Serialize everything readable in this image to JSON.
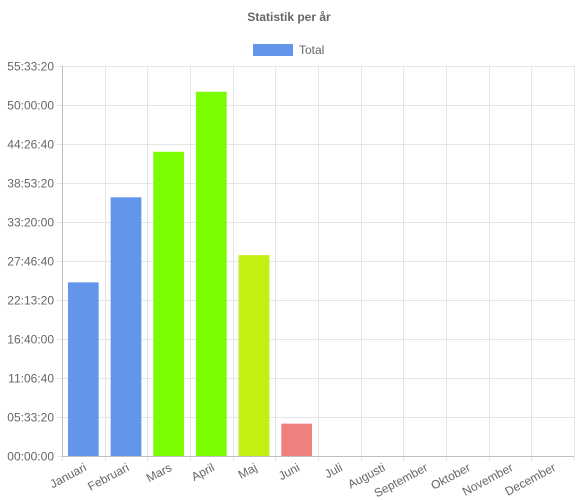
{
  "chart_data": {
    "type": "bar",
    "title": "Statistik per år",
    "legend": {
      "position": "top-center",
      "entries": [
        {
          "label": "Total",
          "color": "#6495ED"
        }
      ]
    },
    "categories": [
      "Januari",
      "Februari",
      "Mars",
      "April",
      "Maj",
      "Juni",
      "Juli",
      "Augusti",
      "September",
      "Oktober",
      "November",
      "December"
    ],
    "series": [
      {
        "name": "Total",
        "values": [
          89040,
          132680,
          156020,
          186800,
          103000,
          16600,
          0,
          0,
          0,
          0,
          0,
          0
        ],
        "colors": [
          "#6495ED",
          "#6495ED",
          "#7CFC00",
          "#7CFC00",
          "#C2F010",
          "#F08080",
          "#6495ED",
          "#6495ED",
          "#6495ED",
          "#6495ED",
          "#6495ED",
          "#6495ED"
        ]
      }
    ],
    "y_unit": "seconds",
    "ylim": [
      0,
      200000
    ],
    "y_ticks": [
      {
        "value": 0,
        "label": "00:00:00"
      },
      {
        "value": 20000,
        "label": "05:33:20"
      },
      {
        "value": 40000,
        "label": "11:06:40"
      },
      {
        "value": 60000,
        "label": "16:40:00"
      },
      {
        "value": 80000,
        "label": "22:13:20"
      },
      {
        "value": 100000,
        "label": "27:46:40"
      },
      {
        "value": 120000,
        "label": "33:20:00"
      },
      {
        "value": 140000,
        "label": "38:53:20"
      },
      {
        "value": 160000,
        "label": "44:26:40"
      },
      {
        "value": 180000,
        "label": "50:00:00"
      },
      {
        "value": 200000,
        "label": "55:33:20"
      }
    ],
    "grid": true
  }
}
